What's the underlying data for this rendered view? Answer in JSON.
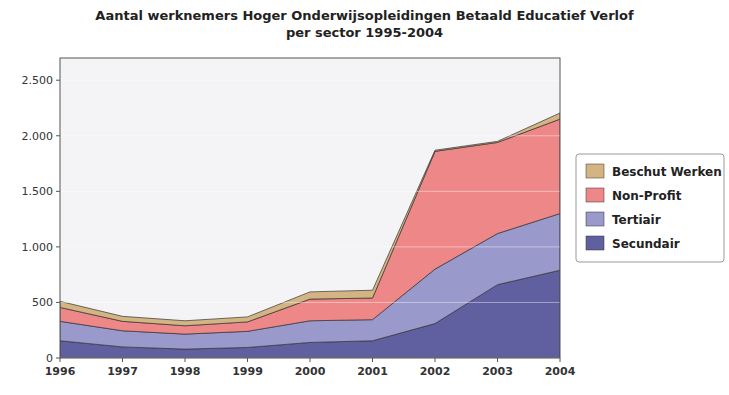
{
  "chart_data": {
    "type": "area",
    "stacked": true,
    "title": "Aantal werknemers Hoger Onderwijsopleidingen Betaald Educatief Verlof\nper sector 1995-2004",
    "x": [
      1996,
      1997,
      1998,
      1999,
      2000,
      2001,
      2002,
      2003,
      2004
    ],
    "xlim": [
      1996,
      2004
    ],
    "xticks": [
      1996,
      1997,
      1998,
      1999,
      2000,
      2001,
      2002,
      2003,
      2004
    ],
    "ylim": [
      0,
      2700
    ],
    "yticks": [
      0,
      500,
      {
        "value": 1000,
        "label": "1.000"
      },
      {
        "value": 1500,
        "label": "1.500"
      },
      {
        "value": 2000,
        "label": "2.000"
      },
      {
        "value": 2500,
        "label": "2.500"
      }
    ],
    "grid": true,
    "legend": "right",
    "series": [
      {
        "name": "Secundair",
        "color": "#6060a0",
        "values": [
          155,
          100,
          80,
          95,
          140,
          155,
          310,
          660,
          790
        ]
      },
      {
        "name": "Tertiair",
        "color": "#9999cc",
        "values": [
          175,
          145,
          135,
          145,
          195,
          190,
          490,
          460,
          510
        ]
      },
      {
        "name": "Non-Profit",
        "color": "#ee8888",
        "values": [
          125,
          85,
          75,
          85,
          195,
          195,
          1060,
          820,
          850
        ]
      },
      {
        "name": "Beschut Werken",
        "color": "#d4b483",
        "values": [
          55,
          45,
          45,
          45,
          65,
          70,
          10,
          10,
          55
        ]
      }
    ]
  }
}
